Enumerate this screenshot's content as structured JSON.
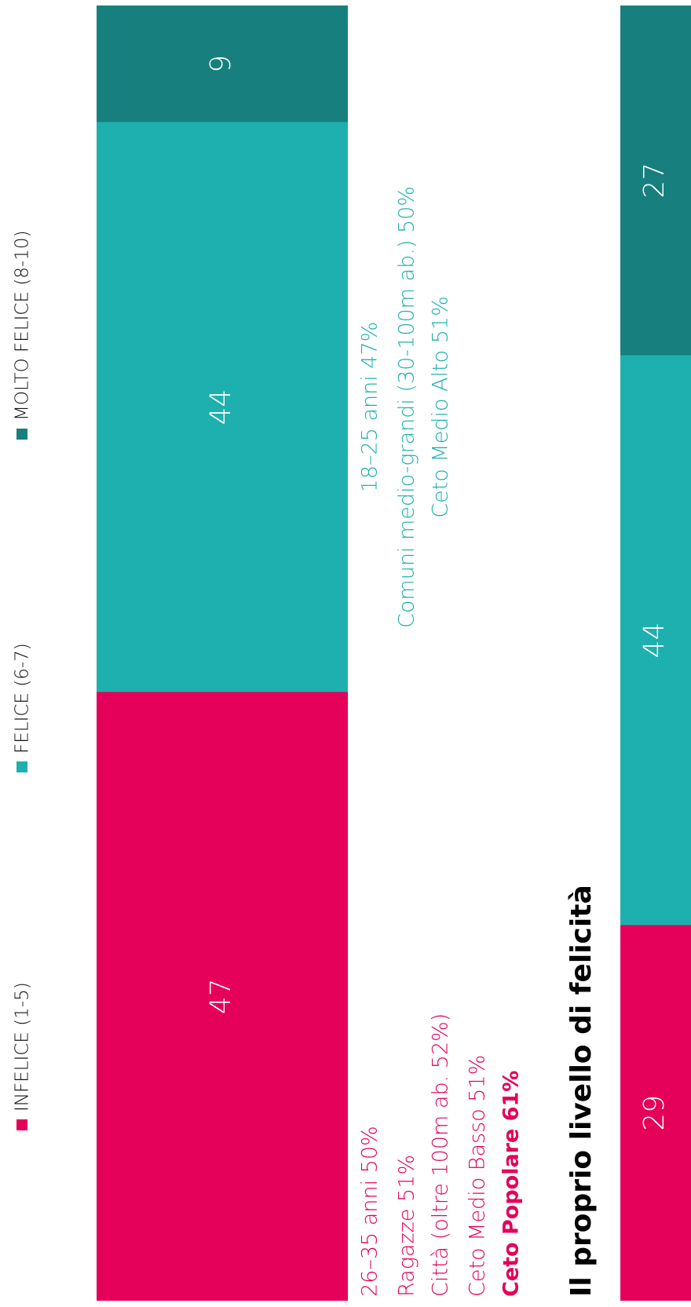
{
  "chart_data": {
    "type": "bar",
    "stacked": true,
    "orientation": "horizontal",
    "categories": [
      null,
      "Il proprio livello di felicità"
    ],
    "xlim": [
      0,
      100
    ],
    "series": [
      {
        "name": "INFELICE (1-5)",
        "color": "#e5005a",
        "values": [
          47,
          29
        ]
      },
      {
        "name": "FELICE (6-7)",
        "color": "#1eb0ae",
        "values": [
          44,
          44
        ]
      },
      {
        "name": "MOLTO FELICE (8-10)",
        "color": "#17807e",
        "values": [
          9,
          27
        ]
      }
    ],
    "annotations": [
      [
        {
          "text": "26–35 anni 50%"
        },
        {
          "text": "Ragazze 51%"
        },
        {
          "text": "Città (oltre 100m ab. 52%)"
        },
        {
          "text": "Ceto Medio Basso 51%"
        },
        {
          "text": "Ceto Popolare 61%",
          "bold": true
        }
      ],
      [
        {
          "text": "18–25 anni 47%"
        },
        {
          "text": "Comuni medio-grandi (30-100m ab.) 50%"
        },
        {
          "text": "Ceto Medio Alto 51%"
        }
      ]
    ]
  }
}
